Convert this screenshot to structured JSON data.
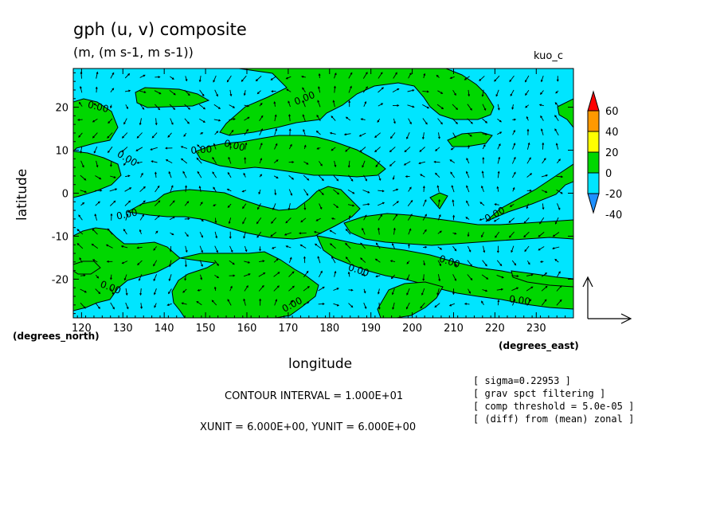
{
  "title": "gph (u, v) composite",
  "subtitle": "(m, (m s-1, m s-1))",
  "case_label": "kuo_c",
  "colors": {
    "green": "#00d700",
    "cyan": "#00e5ff",
    "red": "#ff0000",
    "orange": "#ff9900",
    "yellow": "#ffff00",
    "blue": "#1e90ff"
  },
  "chart_data": {
    "type": "contour-vector",
    "xlabel": "longitude",
    "ylabel": "latitude",
    "x_unit_label": "(degrees_east)",
    "y_unit_label": "(degrees_north)",
    "xlim": [
      118,
      239
    ],
    "ylim": [
      -29,
      29
    ],
    "x_ticks": [
      120,
      130,
      140,
      150,
      160,
      170,
      180,
      190,
      200,
      210,
      220,
      230
    ],
    "y_ticks": [
      -20,
      -10,
      0,
      10,
      20
    ],
    "contour_label": "0.00",
    "contour_labels_pos": [
      [
        124,
        20
      ],
      [
        131,
        8
      ],
      [
        149,
        10
      ],
      [
        157,
        11
      ],
      [
        174,
        22
      ],
      [
        131,
        -5
      ],
      [
        127,
        -22
      ],
      [
        171,
        -26
      ],
      [
        187,
        -18
      ],
      [
        209,
        -16
      ],
      [
        226,
        -25
      ],
      [
        220,
        -5
      ]
    ],
    "colorbar": {
      "levels": [
        -40,
        -20,
        0,
        20,
        40,
        60
      ],
      "colors": [
        "#1e90ff",
        "#00e5ff",
        "#00d700",
        "#ffff00",
        "#ff9900",
        "#ff0000"
      ]
    },
    "contour_interval": "CONTOUR INTERVAL = 1.000E+01",
    "vector_units": "XUNIT = 6.000E+00, YUNIT = 6.000E+00",
    "notes": [
      "[ sigma=0.22953 ]",
      "[ grav spct filtering ]",
      "[ comp threshold = 5.0e-05 ]",
      "[ (diff) from (mean) zonal ]"
    ]
  }
}
